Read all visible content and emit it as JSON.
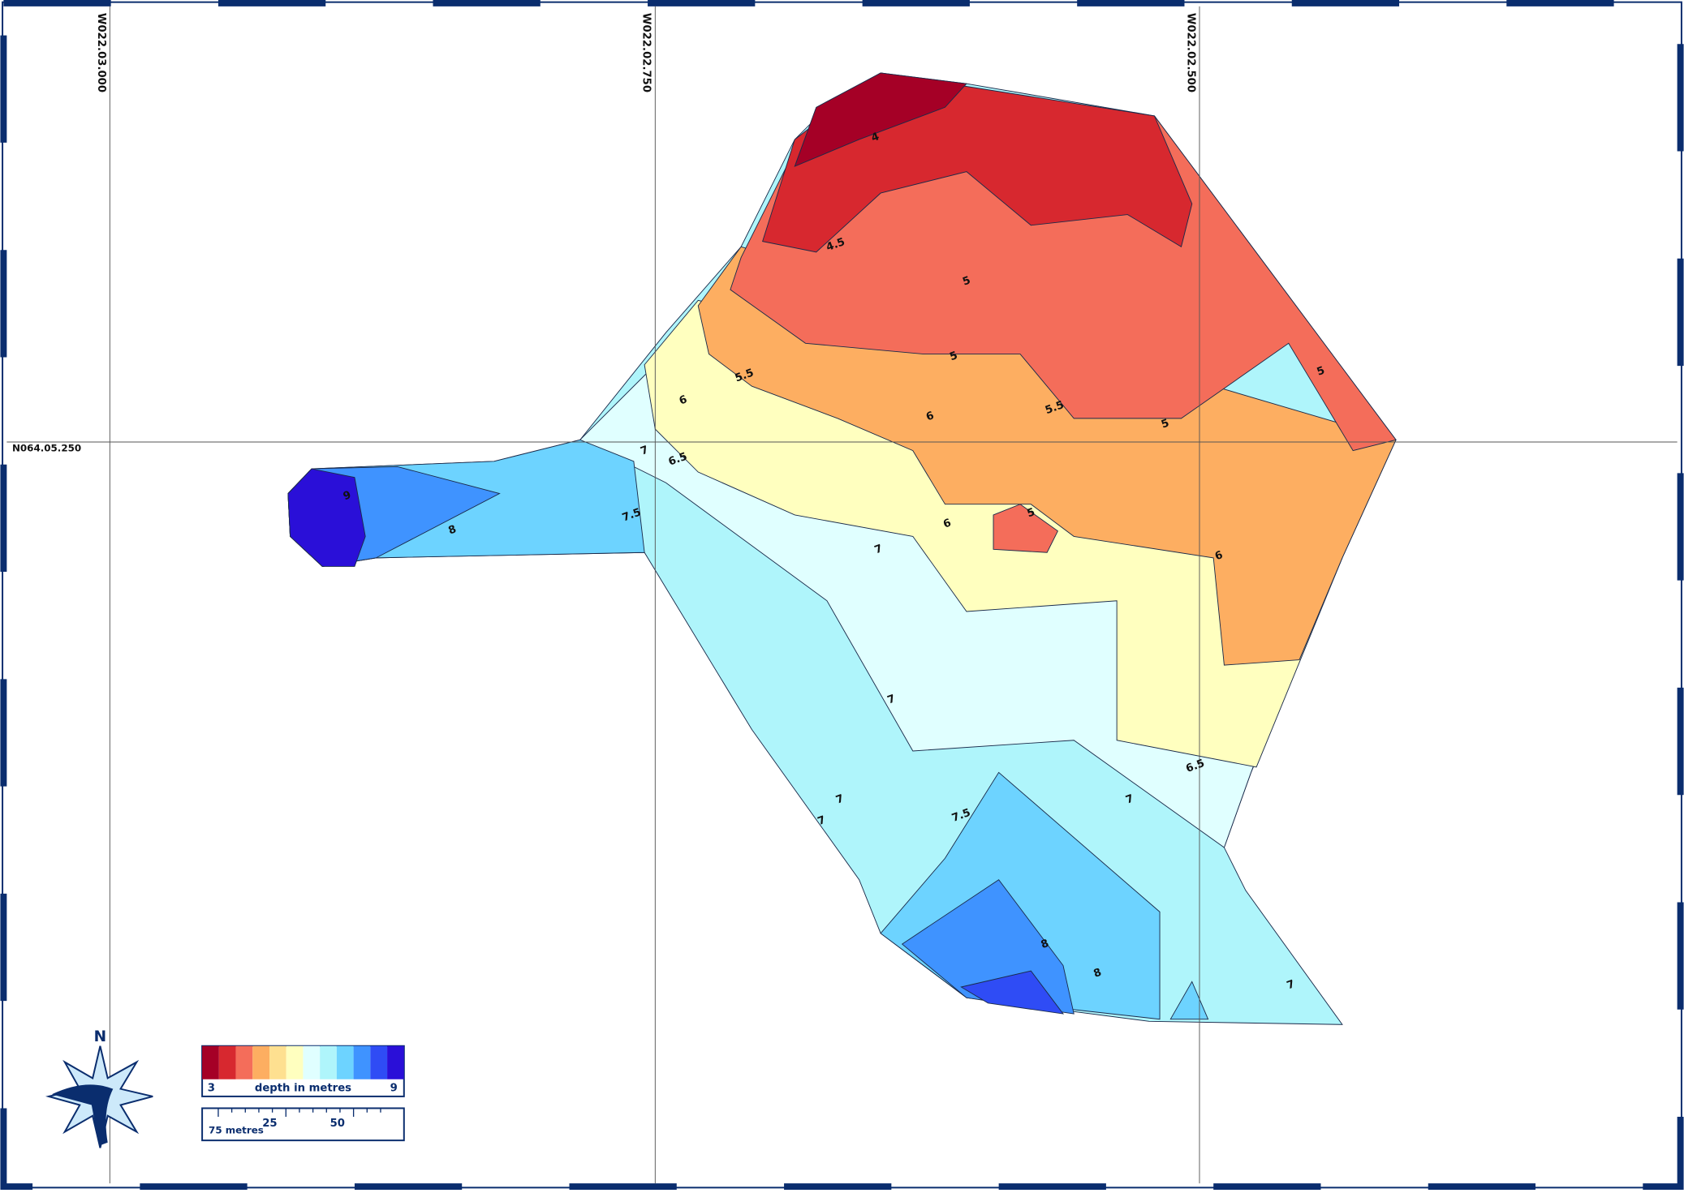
{
  "grid_labels": {
    "lon": [
      "W022.03.000",
      "W022.02.750",
      "W022.02.500"
    ],
    "lat": [
      "N064.05.250"
    ]
  },
  "contour_labels": [
    "4",
    "4.5",
    "5",
    "5",
    "5.5",
    "6",
    "6",
    "5.5",
    "5",
    "5",
    "6.5",
    "7",
    "7.5",
    "6",
    "5",
    "7",
    "6",
    "9",
    "8",
    "7",
    "6.5",
    "7",
    "7",
    "7",
    "7.5",
    "8",
    "8",
    "7"
  ],
  "legend": {
    "title": "depth in metres",
    "min": 3,
    "max": 9,
    "colors": [
      "#a50026",
      "#d7282f",
      "#f46d5a",
      "#fdae61",
      "#fee090",
      "#ffffbf",
      "#e0ffff",
      "#aff5fb",
      "#6dd3ff",
      "#3f93ff",
      "#2f4cf5",
      "#2a0fd8"
    ]
  },
  "scale_bar": {
    "title": "75 metres",
    "ticks": [
      "25",
      "50"
    ]
  },
  "north": "N"
}
